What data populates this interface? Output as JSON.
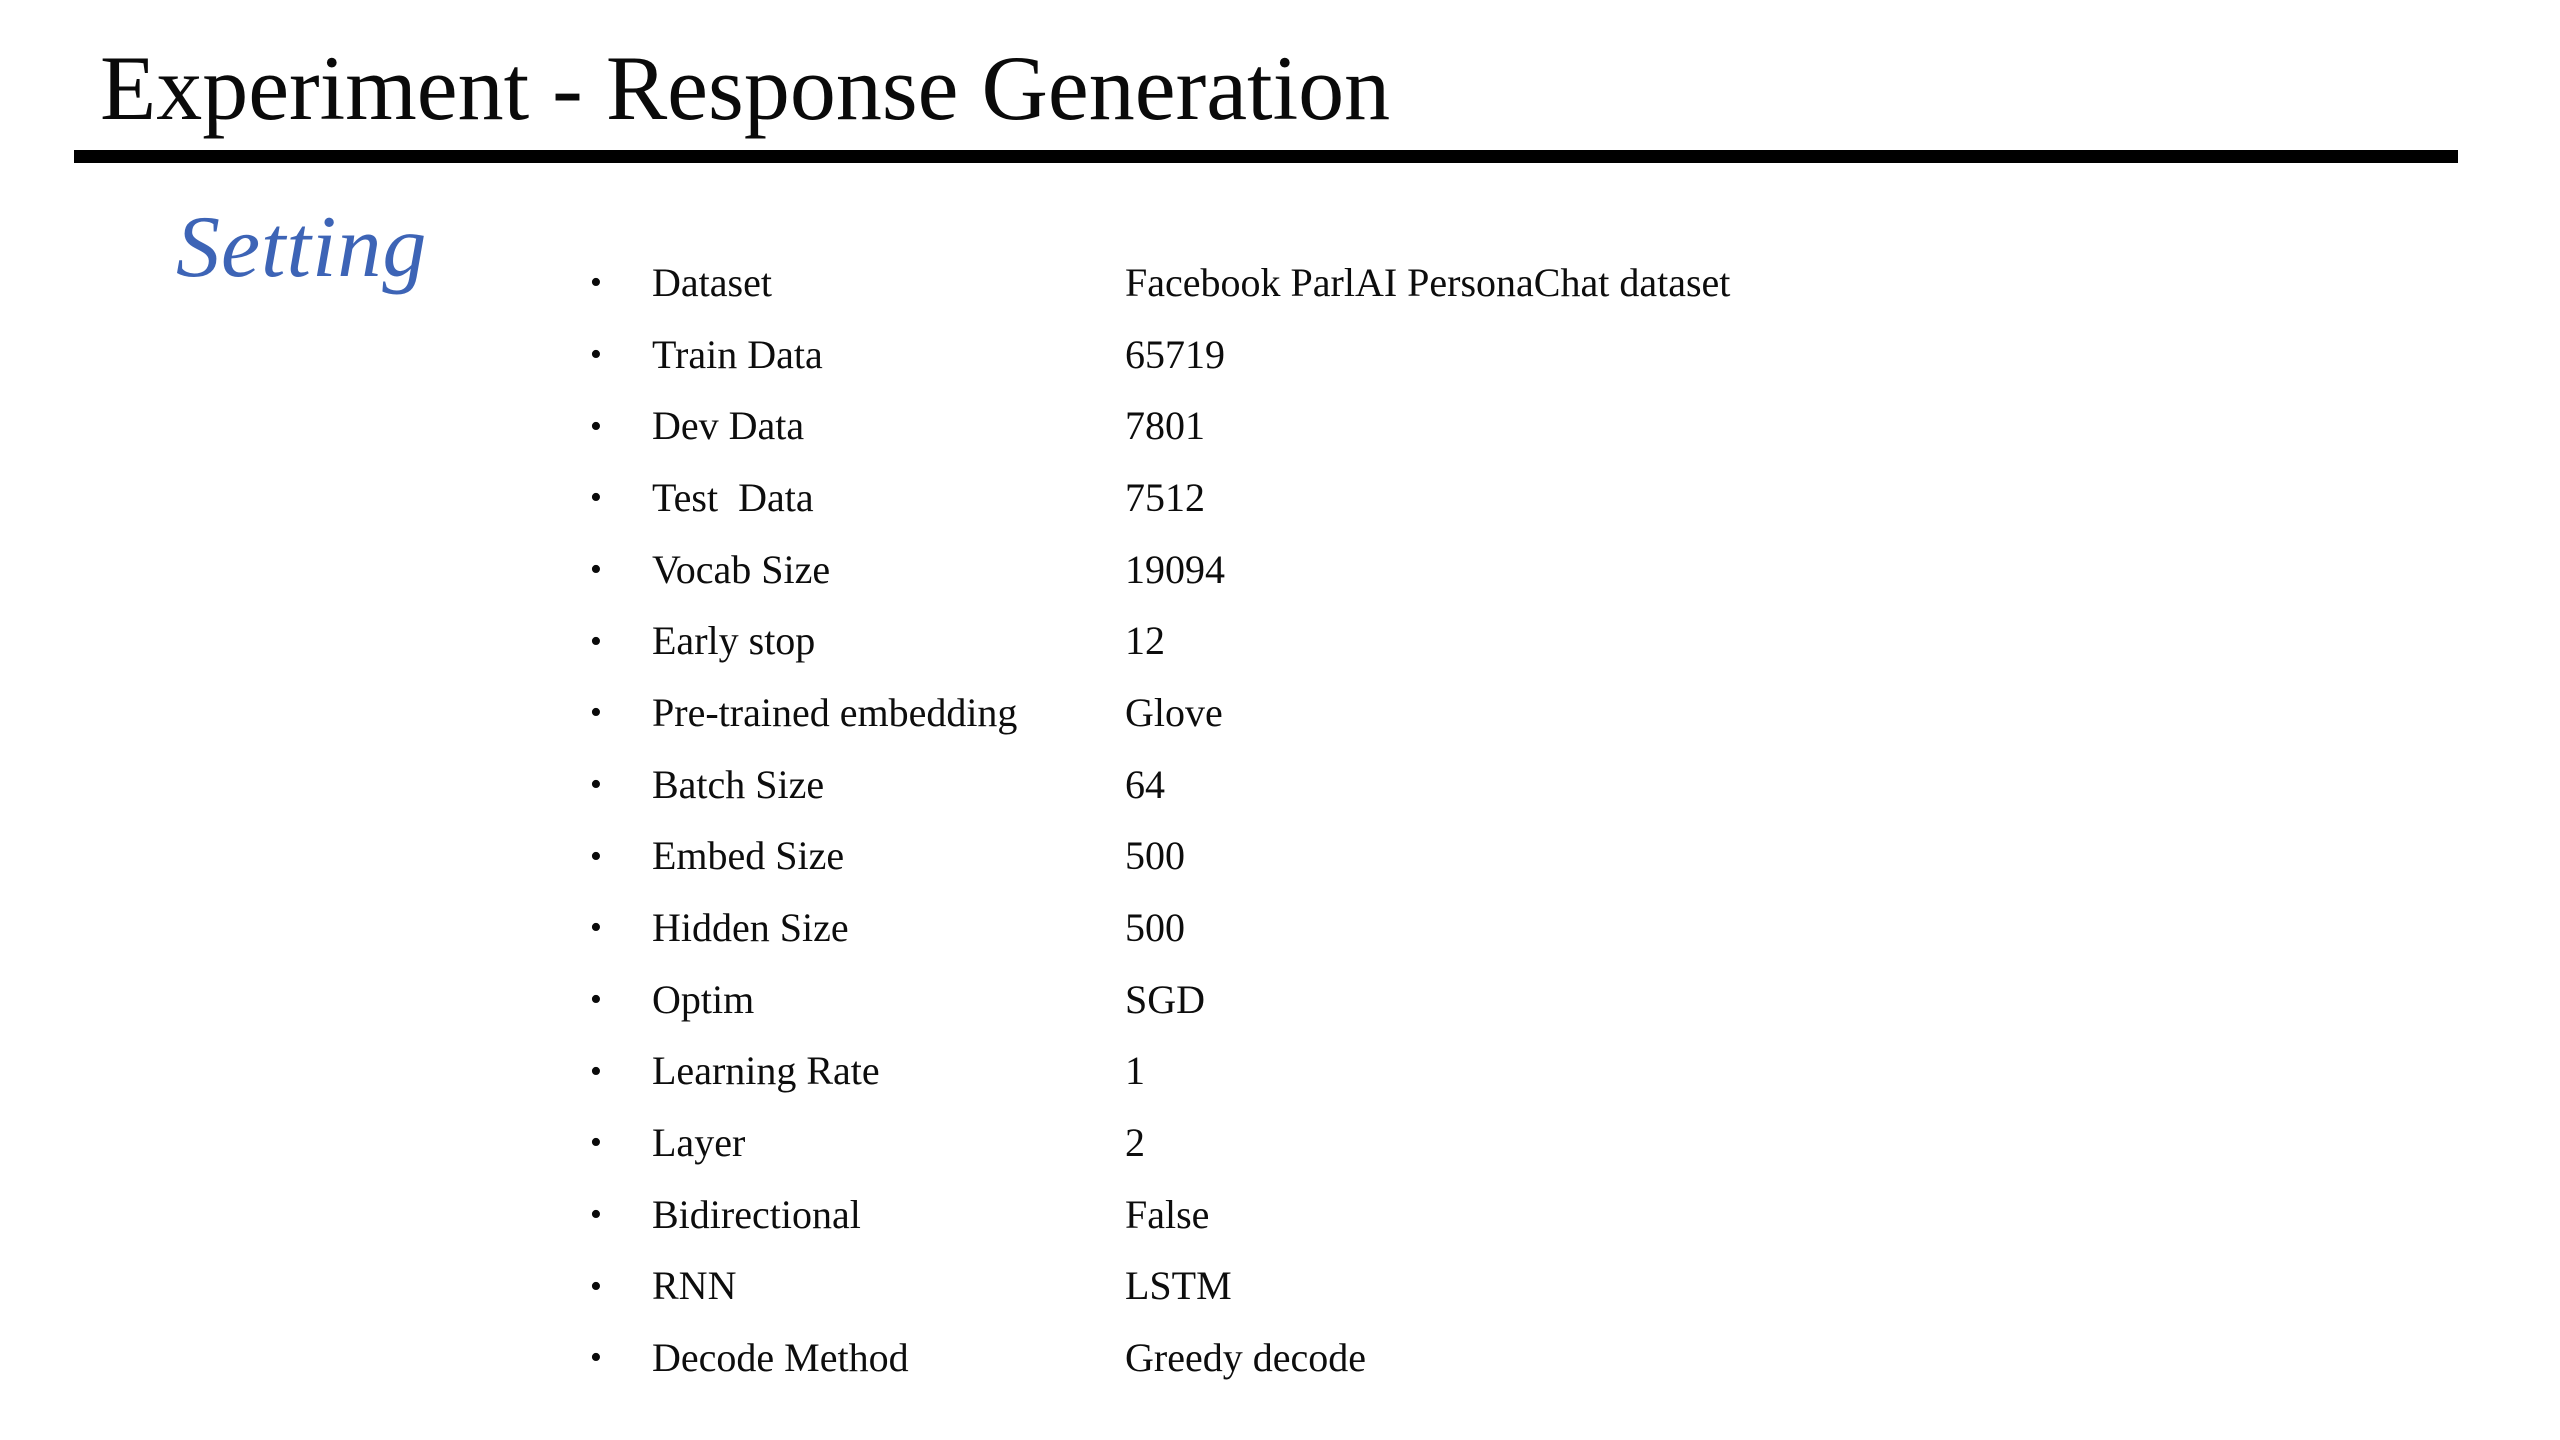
{
  "slide": {
    "title": "Experiment - Response Generation",
    "section_heading": "Setting",
    "accent_color": "#3D64B6",
    "rule_color": "#000000",
    "text_color": "#0d0d0d",
    "bullet_glyph": "•",
    "settings": [
      {
        "label": "Dataset",
        "value": "Facebook ParlAI PersonaChat dataset"
      },
      {
        "label": "Train Data",
        "value": "65719"
      },
      {
        "label": "Dev Data",
        "value": "7801"
      },
      {
        "label": "Test  Data",
        "value": "7512"
      },
      {
        "label": "Vocab Size",
        "value": "19094"
      },
      {
        "label": "Early stop",
        "value": "12"
      },
      {
        "label": "Pre-trained embedding",
        "value": "Glove"
      },
      {
        "label": "Batch Size",
        "value": "64"
      },
      {
        "label": "Embed Size",
        "value": "500"
      },
      {
        "label": "Hidden Size",
        "value": "500"
      },
      {
        "label": "Optim",
        "value": "SGD"
      },
      {
        "label": "Learning Rate",
        "value": "1"
      },
      {
        "label": "Layer",
        "value": "2"
      },
      {
        "label": "Bidirectional",
        "value": "False"
      },
      {
        "label": "RNN",
        "value": "LSTM"
      },
      {
        "label": "Decode Method",
        "value": "Greedy decode"
      }
    ]
  }
}
